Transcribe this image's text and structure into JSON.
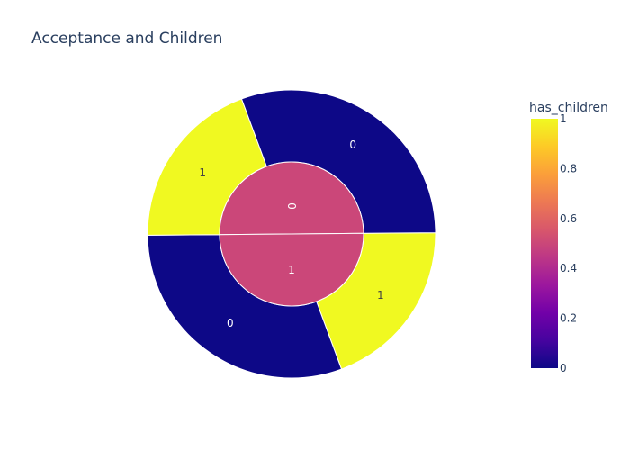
{
  "chart_data": {
    "type": "sunburst",
    "title": "Acceptance and Children",
    "colorbar": {
      "title": "has_children",
      "range": [
        0,
        1
      ],
      "ticks": [
        "0",
        "0.2",
        "0.4",
        "0.6",
        "0.8",
        "1"
      ],
      "colors": [
        "#0d0887",
        "#46039f",
        "#7201a8",
        "#9c179e",
        "#bd3786",
        "#d8576b",
        "#ed7953",
        "#fb9f3a",
        "#fdca26",
        "#f0f921"
      ]
    },
    "inner_ring": [
      {
        "label": "0",
        "share": 0.5,
        "color_value": 0.5
      },
      {
        "label": "1",
        "share": 0.5,
        "color_value": 0.5
      }
    ],
    "outer_ring": [
      {
        "parent": "0",
        "label": "0",
        "share": 0.305,
        "color_value": 0
      },
      {
        "parent": "1",
        "label": "1",
        "share": 0.195,
        "color_value": 1
      },
      {
        "parent": "1",
        "label": "0",
        "share": 0.305,
        "color_value": 0
      },
      {
        "parent": "0",
        "label": "1",
        "share": 0.195,
        "color_value": 1
      }
    ],
    "label_color_dark": "#444444",
    "label_color_light": "#ffffff"
  }
}
